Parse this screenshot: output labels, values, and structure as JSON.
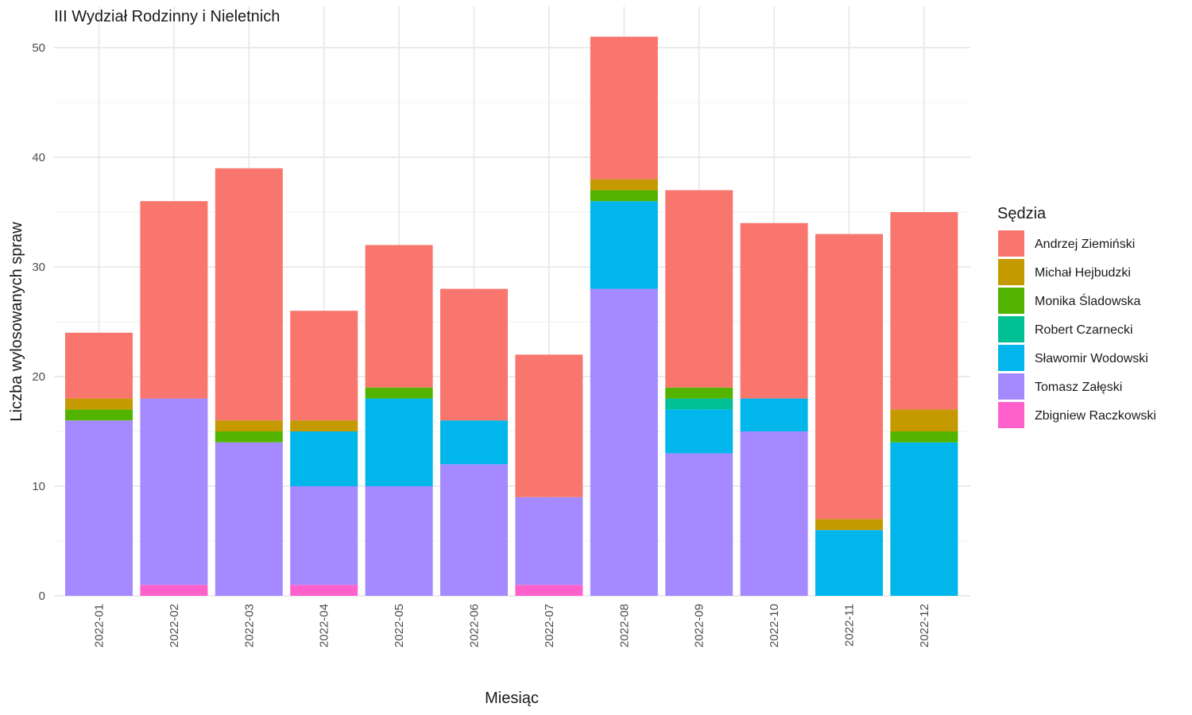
{
  "chart_data": {
    "type": "bar",
    "stacked": true,
    "title": "III Wydział Rodzinny i Nieletnich",
    "xlabel": "Miesiąc",
    "ylabel": "Liczba wylosowanych spraw",
    "ylim": [
      0,
      52
    ],
    "yticks": [
      0,
      10,
      20,
      30,
      40,
      50
    ],
    "grid": true,
    "legend_title": "Sędzia",
    "legend_position": "right",
    "categories": [
      "2022-01",
      "2022-02",
      "2022-03",
      "2022-04",
      "2022-05",
      "2022-06",
      "2022-07",
      "2022-08",
      "2022-09",
      "2022-10",
      "2022-11",
      "2022-12"
    ],
    "series": [
      {
        "name": "Zbigniew Raczkowski",
        "color": "#FF61CC",
        "values": [
          0,
          1,
          0,
          1,
          0,
          0,
          1,
          0,
          0,
          0,
          0,
          0
        ]
      },
      {
        "name": "Tomasz Załęski",
        "color": "#A58AFF",
        "values": [
          16,
          17,
          14,
          9,
          10,
          12,
          8,
          28,
          13,
          15,
          0,
          0
        ]
      },
      {
        "name": "Sławomir Wodowski",
        "color": "#00B6EB",
        "values": [
          0,
          0,
          0,
          5,
          8,
          4,
          0,
          8,
          4,
          3,
          6,
          14
        ]
      },
      {
        "name": "Robert Czarnecki",
        "color": "#00C094",
        "values": [
          0,
          0,
          0,
          0,
          0,
          0,
          0,
          0,
          1,
          0,
          0,
          0
        ]
      },
      {
        "name": "Monika Śladowska",
        "color": "#53B400",
        "values": [
          1,
          0,
          1,
          0,
          1,
          0,
          0,
          1,
          1,
          0,
          0,
          1
        ]
      },
      {
        "name": "Michał Hejbudzki",
        "color": "#C49A00",
        "values": [
          1,
          0,
          1,
          1,
          0,
          0,
          0,
          1,
          0,
          0,
          1,
          2
        ]
      },
      {
        "name": "Andrzej Ziemiński",
        "color": "#F8766D",
        "values": [
          6,
          18,
          23,
          10,
          13,
          12,
          13,
          13,
          18,
          16,
          26,
          18
        ]
      }
    ],
    "legend_order": [
      "Andrzej Ziemiński",
      "Michał Hejbudzki",
      "Monika Śladowska",
      "Robert Czarnecki",
      "Sławomir Wodowski",
      "Tomasz Załęski",
      "Zbigniew Raczkowski"
    ]
  }
}
